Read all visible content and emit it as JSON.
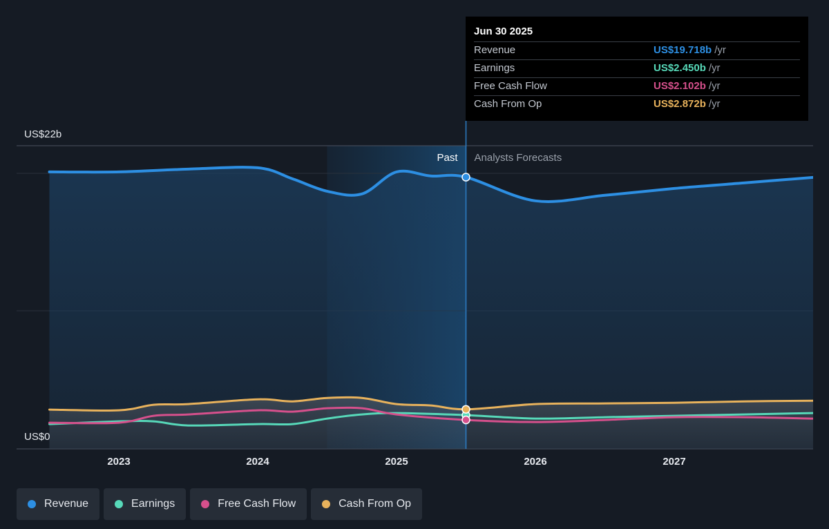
{
  "chart_data": {
    "type": "line",
    "y_axis": {
      "top_label": "US$22b",
      "bottom_label": "US$0",
      "ylim": [
        0,
        22
      ]
    },
    "x_ticks": [
      "2023",
      "2024",
      "2025",
      "2026",
      "2027"
    ],
    "period_labels": {
      "past": "Past",
      "forecast": "Analysts Forecasts"
    },
    "forecast_start": 2025.5,
    "series": [
      {
        "name": "Revenue",
        "color": "#2d8fe3",
        "points": [
          [
            2022.5,
            20.1
          ],
          [
            2023.0,
            20.1
          ],
          [
            2023.5,
            20.3
          ],
          [
            2024.0,
            20.4
          ],
          [
            2024.25,
            19.6
          ],
          [
            2024.5,
            18.7
          ],
          [
            2024.75,
            18.5
          ],
          [
            2025.0,
            20.1
          ],
          [
            2025.25,
            19.8
          ],
          [
            2025.5,
            19.718
          ],
          [
            2026.0,
            18.0
          ],
          [
            2026.5,
            18.4
          ],
          [
            2027.0,
            18.9
          ],
          [
            2027.5,
            19.3
          ],
          [
            2028.0,
            19.7
          ]
        ]
      },
      {
        "name": "Earnings",
        "color": "#57d9b9",
        "points": [
          [
            2022.5,
            1.8
          ],
          [
            2023.0,
            2.0
          ],
          [
            2023.25,
            2.0
          ],
          [
            2023.5,
            1.7
          ],
          [
            2024.0,
            1.8
          ],
          [
            2024.25,
            1.8
          ],
          [
            2024.5,
            2.2
          ],
          [
            2024.75,
            2.5
          ],
          [
            2025.0,
            2.6
          ],
          [
            2025.5,
            2.45
          ],
          [
            2026.0,
            2.2
          ],
          [
            2026.5,
            2.3
          ],
          [
            2027.0,
            2.4
          ],
          [
            2027.5,
            2.5
          ],
          [
            2028.0,
            2.6
          ]
        ]
      },
      {
        "name": "Free Cash Flow",
        "color": "#d6508c",
        "points": [
          [
            2022.5,
            1.9
          ],
          [
            2023.0,
            1.9
          ],
          [
            2023.25,
            2.4
          ],
          [
            2023.5,
            2.5
          ],
          [
            2024.0,
            2.8
          ],
          [
            2024.25,
            2.7
          ],
          [
            2024.5,
            2.95
          ],
          [
            2024.75,
            2.95
          ],
          [
            2025.0,
            2.5
          ],
          [
            2025.5,
            2.102
          ],
          [
            2026.0,
            1.95
          ],
          [
            2026.5,
            2.1
          ],
          [
            2027.0,
            2.3
          ],
          [
            2027.5,
            2.3
          ],
          [
            2028.0,
            2.2
          ]
        ]
      },
      {
        "name": "Cash From Op",
        "color": "#e8b25c",
        "points": [
          [
            2022.5,
            2.85
          ],
          [
            2023.0,
            2.8
          ],
          [
            2023.25,
            3.2
          ],
          [
            2023.5,
            3.25
          ],
          [
            2024.0,
            3.6
          ],
          [
            2024.25,
            3.45
          ],
          [
            2024.5,
            3.7
          ],
          [
            2024.75,
            3.7
          ],
          [
            2025.0,
            3.25
          ],
          [
            2025.25,
            3.15
          ],
          [
            2025.5,
            2.872
          ],
          [
            2026.0,
            3.25
          ],
          [
            2026.5,
            3.3
          ],
          [
            2027.0,
            3.35
          ],
          [
            2027.5,
            3.45
          ],
          [
            2028.0,
            3.5
          ]
        ]
      }
    ]
  },
  "tooltip": {
    "date": "Jun 30 2025",
    "rows": [
      {
        "name": "Revenue",
        "value": "US$19.718b",
        "unit": "/yr",
        "color": "#2d8fe3"
      },
      {
        "name": "Earnings",
        "value": "US$2.450b",
        "unit": "/yr",
        "color": "#57d9b9"
      },
      {
        "name": "Free Cash Flow",
        "value": "US$2.102b",
        "unit": "/yr",
        "color": "#d6508c"
      },
      {
        "name": "Cash From Op",
        "value": "US$2.872b",
        "unit": "/yr",
        "color": "#e8b25c"
      }
    ]
  },
  "legend": [
    {
      "label": "Revenue",
      "color": "#2d8fe3"
    },
    {
      "label": "Earnings",
      "color": "#57d9b9"
    },
    {
      "label": "Free Cash Flow",
      "color": "#d6508c"
    },
    {
      "label": "Cash From Op",
      "color": "#e8b25c"
    }
  ]
}
